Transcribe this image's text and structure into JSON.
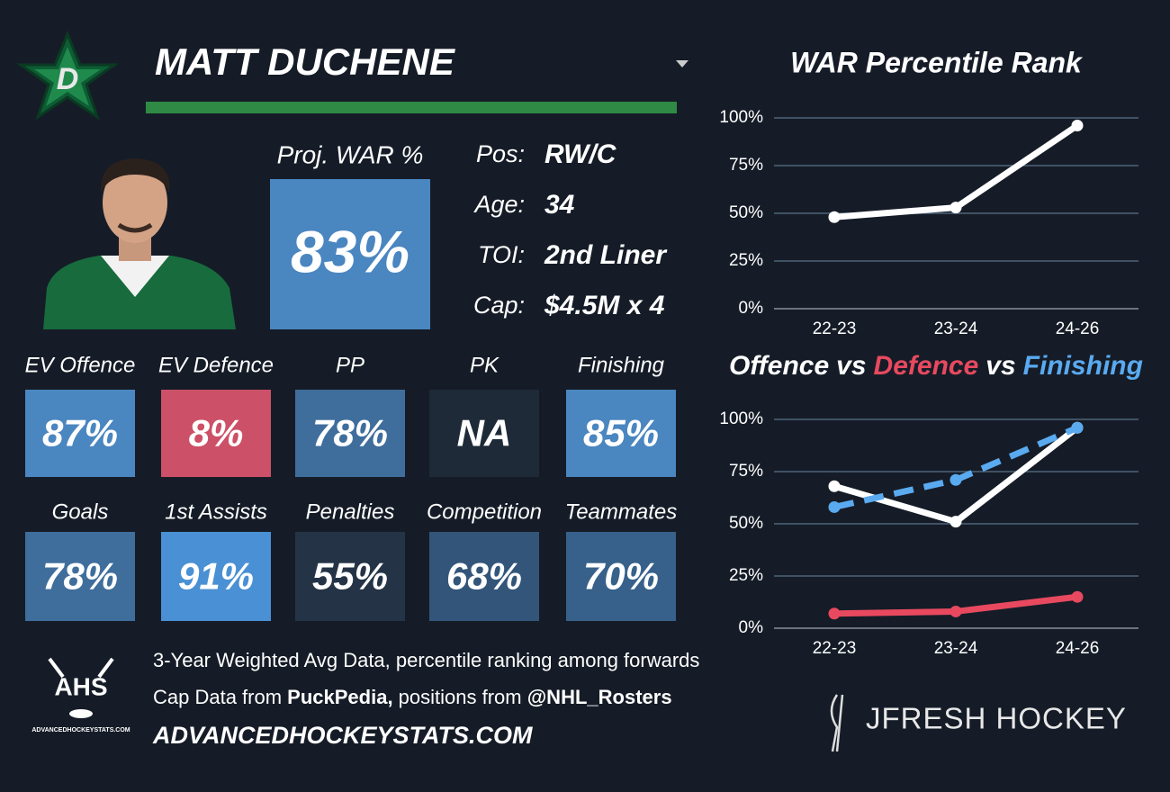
{
  "header": {
    "name": "MATT DUCHENE",
    "proj_label": "Proj. WAR %",
    "proj_value": "83%",
    "proj_color": "#4a86c0"
  },
  "info": [
    {
      "label": "Pos:",
      "value": "RW/C"
    },
    {
      "label": "Age:",
      "value": "34"
    },
    {
      "label": "TOI:",
      "value": "2nd Liner"
    },
    {
      "label": "Cap:",
      "value": "$4.5M x 4"
    }
  ],
  "tiles": [
    {
      "label": "EV Offence",
      "value": "87%",
      "color": "#4a86c0"
    },
    {
      "label": "EV Defence",
      "value": "8%",
      "color": "#cc5067"
    },
    {
      "label": "PP",
      "value": "78%",
      "color": "#3f6e9c"
    },
    {
      "label": "PK",
      "value": "NA",
      "color": "#1e2a38"
    },
    {
      "label": "Finishing",
      "value": "85%",
      "color": "#4a86c0"
    },
    {
      "label": "Goals",
      "value": "78%",
      "color": "#3f6e9c"
    },
    {
      "label": "1st Assists",
      "value": "91%",
      "color": "#4a90d4"
    },
    {
      "label": "Penalties",
      "value": "55%",
      "color": "#243446"
    },
    {
      "label": "Competition",
      "value": "68%",
      "color": "#33557a"
    },
    {
      "label": "Teammates",
      "value": "70%",
      "color": "#37618a"
    }
  ],
  "footer": {
    "note": "3-Year Weighted Avg Data, percentile ranking among forwards",
    "credit_parts": [
      {
        "text": "Cap Data from ",
        "bold": false
      },
      {
        "text": "PuckPedia,",
        "bold": true
      },
      {
        "text": " positions from ",
        "bold": false
      },
      {
        "text": "@NHL_Rosters",
        "bold": true
      }
    ],
    "site": "ADVANCEDHOCKEYSTATS.COM"
  },
  "logos": {
    "ahs": "AHS",
    "ahs_site": "ADVANCEDHOCKEYSTATS.COM",
    "brand": "JFRESH HOCKEY"
  },
  "chart_data": [
    {
      "type": "line",
      "title": "WAR Percentile Rank",
      "categories": [
        "22-23",
        "23-24",
        "24-26"
      ],
      "values": [
        48,
        53,
        96
      ],
      "color": "#ffffff",
      "ylim": [
        0,
        100
      ],
      "yticks": [
        {
          "value": 0,
          "label": "0%"
        },
        {
          "value": 25,
          "label": "25%"
        },
        {
          "value": 50,
          "label": "50%"
        },
        {
          "value": 75,
          "label": "75%"
        },
        {
          "value": 100,
          "label": "100%"
        }
      ],
      "grid": true
    },
    {
      "type": "line",
      "title_separator": "vs",
      "categories": [
        "22-23",
        "23-24",
        "24-26"
      ],
      "series": [
        {
          "name": "Offence",
          "color": "#ffffff",
          "line_style": "solid",
          "values": [
            68,
            51,
            96
          ]
        },
        {
          "name": "Defence",
          "color": "#e8495f",
          "line_style": "solid",
          "values": [
            7,
            8,
            15
          ]
        },
        {
          "name": "Finishing",
          "color": "#5aaaf0",
          "line_style": "dashed",
          "values": [
            58,
            71,
            96
          ]
        }
      ],
      "ylim": [
        0,
        100
      ],
      "yticks": [
        {
          "value": 0,
          "label": "0%"
        },
        {
          "value": 25,
          "label": "25%"
        },
        {
          "value": 50,
          "label": "50%"
        },
        {
          "value": 75,
          "label": "75%"
        },
        {
          "value": 100,
          "label": "100%"
        }
      ],
      "grid": true
    }
  ]
}
